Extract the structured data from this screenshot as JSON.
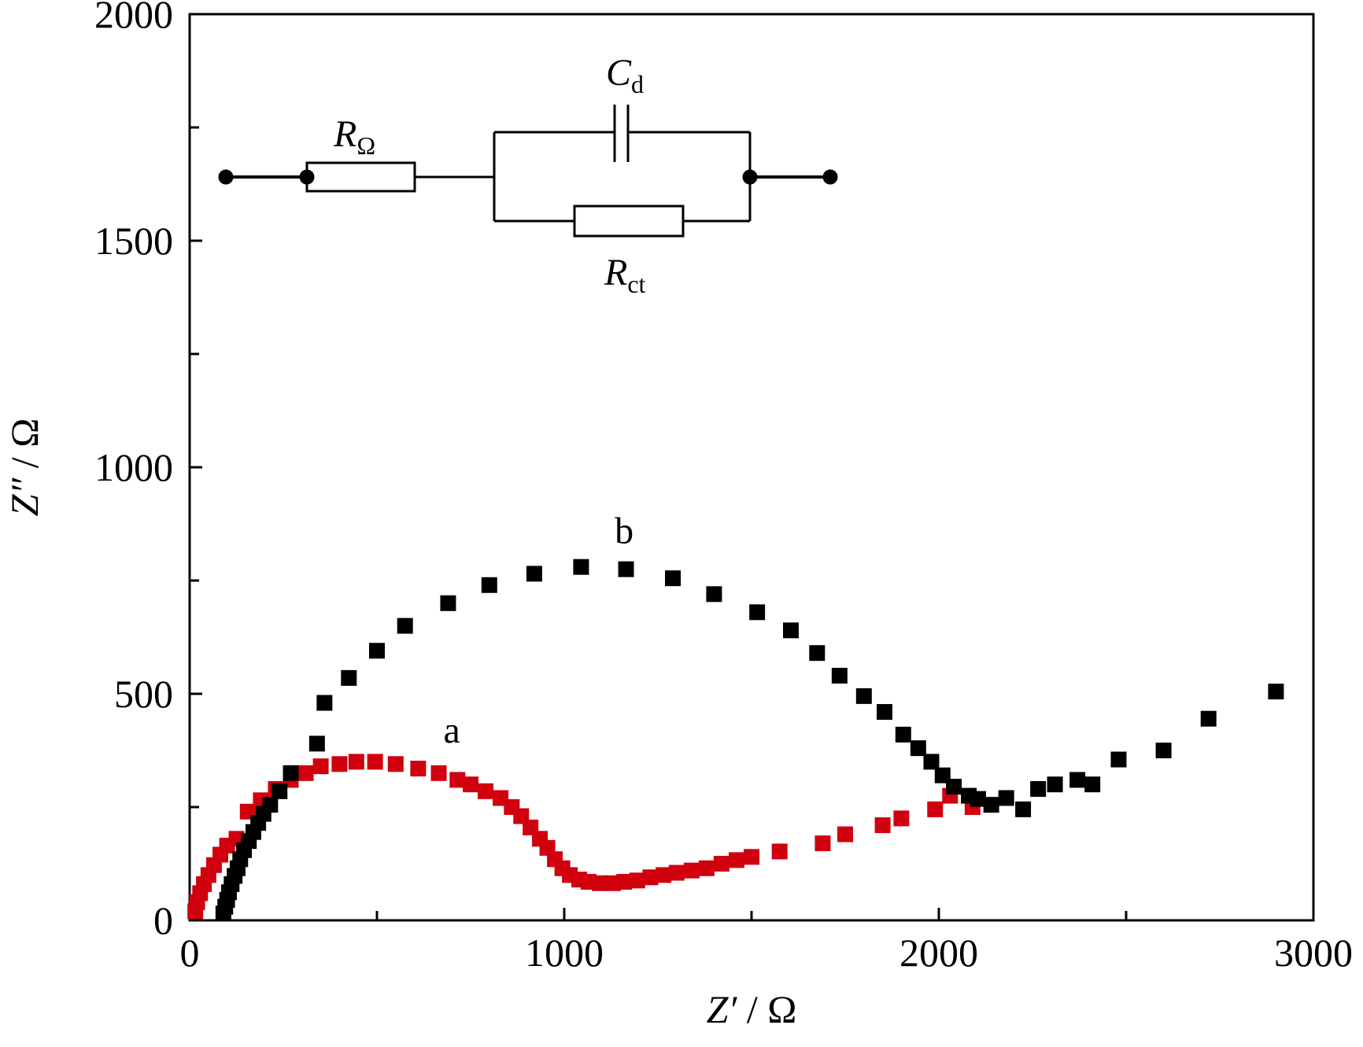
{
  "chart_data": {
    "type": "scatter",
    "xlabel": {
      "symbol": "Z′",
      "unit": " / Ω"
    },
    "ylabel": {
      "symbol": "Z″",
      "unit": " / Ω"
    },
    "xlim": [
      0,
      3000
    ],
    "ylim": [
      0,
      2000
    ],
    "x_ticks": [
      0,
      1000,
      2000,
      3000
    ],
    "x_tick_labels": [
      "0",
      "1000",
      "2000",
      "3000"
    ],
    "x_minor_ticks": [
      500,
      1500,
      2500
    ],
    "y_ticks": [
      0,
      500,
      1000,
      1500,
      2000
    ],
    "y_tick_labels": [
      "0",
      "500",
      "1000",
      "1500",
      "2000"
    ],
    "y_minor_ticks": [
      250,
      750,
      1250,
      1750
    ],
    "grid": false,
    "series": [
      {
        "name": "a",
        "color": "#d0000f",
        "marker": "square",
        "label_at": [
          700,
          420
        ],
        "points": [
          [
            15,
            20
          ],
          [
            20,
            40
          ],
          [
            28,
            60
          ],
          [
            38,
            80
          ],
          [
            50,
            100
          ],
          [
            65,
            122
          ],
          [
            82,
            145
          ],
          [
            100,
            165
          ],
          [
            125,
            180
          ],
          [
            155,
            240
          ],
          [
            190,
            265
          ],
          [
            230,
            290
          ],
          [
            270,
            310
          ],
          [
            310,
            325
          ],
          [
            350,
            340
          ],
          [
            400,
            345
          ],
          [
            445,
            350
          ],
          [
            495,
            350
          ],
          [
            550,
            345
          ],
          [
            610,
            335
          ],
          [
            665,
            325
          ],
          [
            715,
            310
          ],
          [
            750,
            300
          ],
          [
            790,
            285
          ],
          [
            830,
            270
          ],
          [
            860,
            250
          ],
          [
            885,
            230
          ],
          [
            910,
            205
          ],
          [
            935,
            180
          ],
          [
            955,
            160
          ],
          [
            975,
            135
          ],
          [
            995,
            115
          ],
          [
            1015,
            100
          ],
          [
            1040,
            90
          ],
          [
            1065,
            85
          ],
          [
            1095,
            82
          ],
          [
            1130,
            82
          ],
          [
            1160,
            85
          ],
          [
            1195,
            88
          ],
          [
            1230,
            95
          ],
          [
            1265,
            100
          ],
          [
            1300,
            105
          ],
          [
            1340,
            110
          ],
          [
            1380,
            115
          ],
          [
            1420,
            125
          ],
          [
            1460,
            133
          ],
          [
            1500,
            140
          ],
          [
            1575,
            152
          ],
          [
            1690,
            170
          ],
          [
            1750,
            190
          ],
          [
            1850,
            210
          ],
          [
            1900,
            225
          ],
          [
            1990,
            245
          ],
          [
            2030,
            275
          ],
          [
            2090,
            250
          ]
        ]
      },
      {
        "name": "b",
        "color": "#000000",
        "marker": "square",
        "label_at": [
          1160,
          860
        ],
        "points": [
          [
            90,
            15
          ],
          [
            95,
            30
          ],
          [
            100,
            45
          ],
          [
            105,
            62
          ],
          [
            112,
            80
          ],
          [
            120,
            98
          ],
          [
            128,
            115
          ],
          [
            135,
            135
          ],
          [
            145,
            155
          ],
          [
            158,
            175
          ],
          [
            170,
            195
          ],
          [
            183,
            215
          ],
          [
            197,
            235
          ],
          [
            215,
            255
          ],
          [
            240,
            285
          ],
          [
            270,
            325
          ],
          [
            340,
            390
          ],
          [
            360,
            480
          ],
          [
            425,
            535
          ],
          [
            500,
            595
          ],
          [
            575,
            650
          ],
          [
            690,
            700
          ],
          [
            800,
            740
          ],
          [
            920,
            765
          ],
          [
            1045,
            780
          ],
          [
            1165,
            775
          ],
          [
            1290,
            755
          ],
          [
            1400,
            720
          ],
          [
            1515,
            680
          ],
          [
            1605,
            640
          ],
          [
            1675,
            590
          ],
          [
            1735,
            540
          ],
          [
            1800,
            495
          ],
          [
            1855,
            460
          ],
          [
            1905,
            410
          ],
          [
            1945,
            380
          ],
          [
            1980,
            350
          ],
          [
            2010,
            320
          ],
          [
            2040,
            295
          ],
          [
            2080,
            275
          ],
          [
            2105,
            268
          ],
          [
            2140,
            255
          ],
          [
            2180,
            270
          ],
          [
            2225,
            245
          ],
          [
            2265,
            290
          ],
          [
            2310,
            300
          ],
          [
            2370,
            310
          ],
          [
            2410,
            300
          ],
          [
            2480,
            355
          ],
          [
            2600,
            375
          ],
          [
            2720,
            445
          ],
          [
            2900,
            505
          ]
        ]
      }
    ],
    "circuit_labels": {
      "r_omega": {
        "main": "R",
        "sub": "Ω"
      },
      "c_d": {
        "main": "C",
        "sub": "d"
      },
      "r_ct": {
        "main": "R",
        "sub": "ct"
      }
    }
  }
}
